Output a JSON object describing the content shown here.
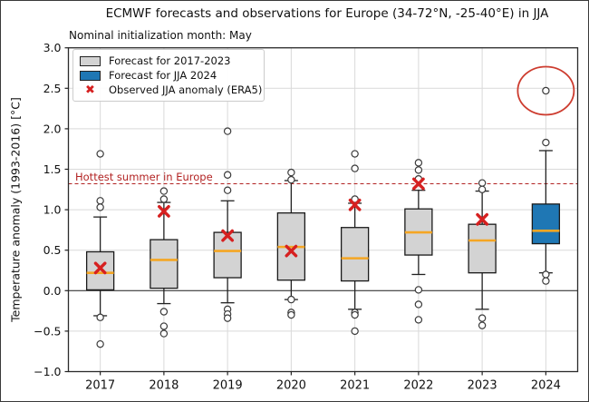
{
  "figure": {
    "title": "ECMWF forecasts and observations for Europe (34-72°N, -25-40°E) in JJA",
    "subtitle": "Nominal initialization month: May"
  },
  "legend": {
    "items": [
      {
        "swatch": "gray-box-swatch",
        "label": "Forecast for 2017-2023"
      },
      {
        "swatch": "blue-box-swatch",
        "label": "Forecast for JJA 2024"
      },
      {
        "swatch": "red-x-swatch",
        "label": "Observed JJA anomaly (ERA5)"
      }
    ],
    "x_glyph": "✖"
  },
  "colors": {
    "box_fill": "#d3d3d3",
    "box_fill_2024": "#1f77b4",
    "box_edge": "#1a1a1a",
    "median": "#f5a623",
    "observed_x": "#d62020",
    "reference_line": "#b22222",
    "annotation_text": "#b22222",
    "highlight_ellipse": "#cd3c2f",
    "grid": "#d9d9d9",
    "zero_line": "#3c3c3c",
    "frame": "#2b2b2b",
    "outlier_stroke": "#3a3a3a",
    "text": "#111111"
  },
  "chart_data": {
    "type": "boxplot",
    "title": "ECMWF forecasts and observations for Europe (34-72°N, -25-40°E) in JJA",
    "subtitle": "Nominal initialization month: May",
    "xlabel": "",
    "ylabel": "Temperature anomaly (1993-2016) [°C]",
    "ylim": [
      -1.0,
      3.0
    ],
    "ytick_values": [
      3.0,
      2.5,
      2.0,
      1.5,
      1.0,
      0.5,
      0.0,
      -0.5,
      -1.0
    ],
    "ytick_labels": [
      "3.0",
      "2.5",
      "2.0",
      "1.5",
      "1.0",
      "0.5",
      "0.0",
      "−0.5",
      "−1.0"
    ],
    "categories": [
      "2017",
      "2018",
      "2019",
      "2020",
      "2021",
      "2022",
      "2023",
      "2024"
    ],
    "grid": true,
    "legend_position": "upper left",
    "zero_line": 0.0,
    "reference_line": {
      "value": 1.32,
      "label": "Hottest summer in Europe",
      "style": "dashed"
    },
    "boxes": [
      {
        "category": "2017",
        "whisker_low": -0.31,
        "q1": 0.01,
        "median": 0.22,
        "q3": 0.48,
        "whisker_high": 0.91,
        "observed": 0.28,
        "outliers": [
          1.69,
          1.11,
          1.03,
          -0.33,
          -0.66
        ],
        "fill": "gray"
      },
      {
        "category": "2018",
        "whisker_low": -0.16,
        "q1": 0.03,
        "median": 0.38,
        "q3": 0.63,
        "whisker_high": 1.09,
        "observed": 0.98,
        "outliers": [
          1.23,
          1.13,
          -0.26,
          -0.44,
          -0.53
        ],
        "fill": "gray"
      },
      {
        "category": "2019",
        "whisker_low": -0.15,
        "q1": 0.16,
        "median": 0.49,
        "q3": 0.72,
        "whisker_high": 1.11,
        "observed": 0.68,
        "outliers": [
          1.97,
          1.43,
          1.24,
          -0.23,
          -0.29,
          -0.34
        ],
        "fill": "gray"
      },
      {
        "category": "2020",
        "whisker_low": -0.11,
        "q1": 0.13,
        "median": 0.54,
        "q3": 0.96,
        "whisker_high": 1.36,
        "observed": 0.49,
        "outliers": [
          1.46,
          1.37,
          -0.11,
          -0.27,
          -0.3
        ],
        "fill": "gray"
      },
      {
        "category": "2021",
        "whisker_low": -0.23,
        "q1": 0.12,
        "median": 0.4,
        "q3": 0.78,
        "whisker_high": 1.08,
        "observed": 1.06,
        "outliers": [
          1.69,
          1.51,
          1.13,
          -0.27,
          -0.3,
          -0.5
        ],
        "fill": "gray"
      },
      {
        "category": "2022",
        "whisker_low": 0.2,
        "q1": 0.44,
        "median": 0.72,
        "q3": 1.01,
        "whisker_high": 1.24,
        "observed": 1.32,
        "outliers": [
          1.58,
          1.49,
          1.38,
          0.01,
          -0.17,
          -0.36
        ],
        "fill": "gray"
      },
      {
        "category": "2023",
        "whisker_low": -0.23,
        "q1": 0.22,
        "median": 0.62,
        "q3": 0.82,
        "whisker_high": 1.23,
        "observed": 0.88,
        "outliers": [
          1.33,
          1.25,
          -0.34,
          -0.43
        ],
        "fill": "gray"
      },
      {
        "category": "2024",
        "whisker_low": 0.22,
        "q1": 0.58,
        "median": 0.74,
        "q3": 1.07,
        "whisker_high": 1.73,
        "observed": null,
        "outliers": [
          2.47,
          1.83,
          0.2,
          0.12
        ],
        "fill": "blue"
      }
    ],
    "highlight_ellipse": {
      "category": "2024",
      "center_value": 2.47
    }
  }
}
